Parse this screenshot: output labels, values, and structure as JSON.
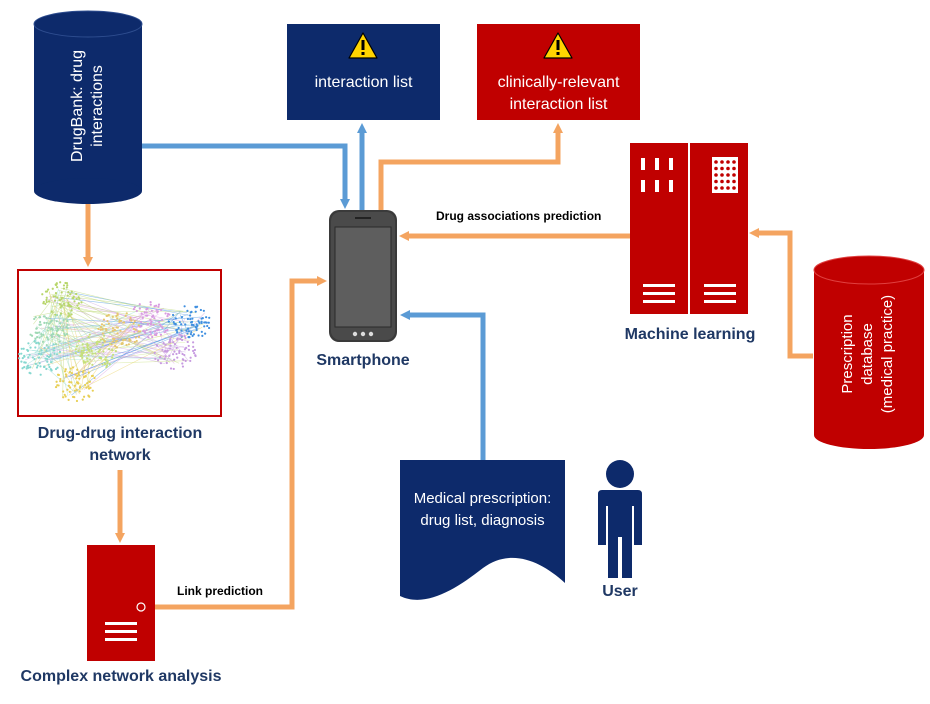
{
  "colors": {
    "navy": "#0d2a6b",
    "red": "#c00000",
    "blue_arrow": "#5b9bd5",
    "orange_arrow": "#f4a460",
    "label": "#1f3864"
  },
  "nodes": {
    "drugbank": {
      "line1": "DrugBank: drug",
      "line2": "interactions"
    },
    "interaction_list": {
      "label": "interaction list",
      "icon": "warning-icon"
    },
    "clinical_list": {
      "line1": "clinically-relevant",
      "line2": "interaction list",
      "icon": "warning-icon"
    },
    "smartphone": {
      "label": "Smartphone",
      "icon": "smartphone-icon"
    },
    "machine_learning": {
      "label": "Machine learning",
      "icon": "server-icon"
    },
    "prescription_db": {
      "line1": "Prescription",
      "line2": "database",
      "line3": "(medical practice)"
    },
    "ddi_network": {
      "line1": "Drug-drug interaction",
      "line2": "network"
    },
    "complex_network": {
      "label": "Complex network analysis",
      "icon": "server-icon"
    },
    "medical_prescription": {
      "line1": "Medical prescription:",
      "line2": "drug list, diagnosis"
    },
    "user": {
      "label": "User",
      "icon": "person-icon"
    }
  },
  "edges": {
    "drug_assoc": "Drug associations prediction",
    "link_prediction": "Link prediction"
  }
}
